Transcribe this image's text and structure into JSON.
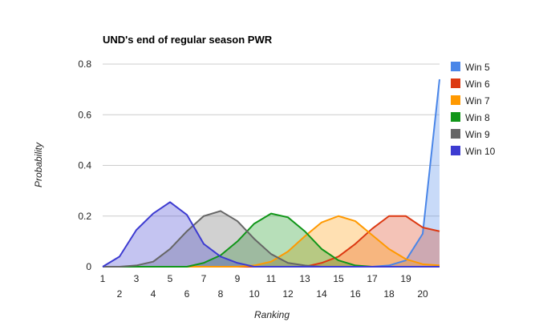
{
  "chart_data": {
    "type": "area",
    "title": "UND's end of regular season PWR",
    "xlabel": "Ranking",
    "ylabel": "Probability",
    "x": [
      1,
      2,
      3,
      4,
      5,
      6,
      7,
      8,
      9,
      10,
      11,
      12,
      13,
      14,
      15,
      16,
      17,
      18,
      19,
      20,
      21
    ],
    "x_tick_labels": [
      "1",
      "2",
      "3",
      "4",
      "5",
      "6",
      "7",
      "8",
      "9",
      "10",
      "11",
      "12",
      "13",
      "14",
      "15",
      "16",
      "17",
      "18",
      "19",
      "20"
    ],
    "ylim": [
      0,
      0.8
    ],
    "y_ticks": [
      0,
      0.2,
      0.4,
      0.6,
      0.8
    ],
    "y_tick_labels": [
      "0",
      "0.2",
      "0.4",
      "0.6",
      "0.8"
    ],
    "grid": true,
    "legend_position": "right",
    "series": [
      {
        "name": "Win 5",
        "color": "#4a86e8",
        "values": [
          0,
          0,
          0,
          0,
          0,
          0,
          0,
          0,
          0,
          0,
          0,
          0,
          0,
          0,
          0,
          0,
          0,
          0.005,
          0.025,
          0.13,
          0.74
        ]
      },
      {
        "name": "Win 6",
        "color": "#dc3912",
        "values": [
          0,
          0,
          0,
          0,
          0,
          0,
          0,
          0,
          0,
          0,
          0,
          0,
          0,
          0.015,
          0.04,
          0.09,
          0.15,
          0.2,
          0.2,
          0.155,
          0.14
        ]
      },
      {
        "name": "Win 7",
        "color": "#ff9900",
        "values": [
          0,
          0,
          0,
          0,
          0,
          0,
          0,
          0,
          0,
          0.005,
          0.02,
          0.06,
          0.12,
          0.175,
          0.2,
          0.18,
          0.125,
          0.07,
          0.03,
          0.01,
          0.005
        ]
      },
      {
        "name": "Win 8",
        "color": "#109618",
        "values": [
          0,
          0,
          0,
          0,
          0,
          0,
          0.015,
          0.045,
          0.1,
          0.17,
          0.21,
          0.195,
          0.14,
          0.07,
          0.025,
          0.005,
          0,
          0,
          0,
          0,
          0
        ]
      },
      {
        "name": "Win 9",
        "color": "#666666",
        "values": [
          0,
          0,
          0.005,
          0.02,
          0.07,
          0.14,
          0.2,
          0.22,
          0.18,
          0.11,
          0.05,
          0.015,
          0.005,
          0,
          0,
          0,
          0,
          0,
          0,
          0,
          0
        ]
      },
      {
        "name": "Win 10",
        "color": "#3d3bd1",
        "values": [
          0,
          0.04,
          0.145,
          0.21,
          0.255,
          0.205,
          0.09,
          0.04,
          0.015,
          0,
          0,
          0,
          0,
          0,
          0,
          0,
          0,
          0,
          0,
          0,
          0
        ]
      }
    ]
  }
}
